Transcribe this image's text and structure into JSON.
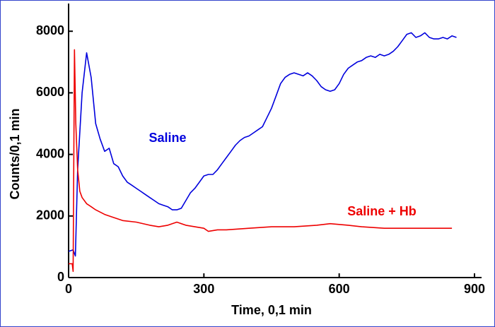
{
  "chart_data": {
    "type": "line",
    "x_label": "Time, 0,1 min",
    "y_label": "Counts/0,1 min",
    "xlim": [
      0,
      900
    ],
    "xticks": [
      0,
      300,
      600,
      900
    ],
    "ylim": [
      0,
      8900
    ],
    "yticks": [
      0,
      2000,
      4000,
      6000,
      8000
    ],
    "annotations": [
      "Saline",
      "Saline + Hb"
    ],
    "series": [
      {
        "name": "Saline",
        "color": "#0000dd",
        "x": [
          0,
          10,
          15,
          20,
          30,
          40,
          50,
          60,
          70,
          80,
          90,
          100,
          110,
          120,
          130,
          140,
          150,
          160,
          170,
          180,
          190,
          200,
          210,
          220,
          230,
          240,
          250,
          260,
          270,
          280,
          290,
          300,
          310,
          320,
          330,
          340,
          350,
          360,
          370,
          380,
          390,
          400,
          410,
          420,
          430,
          440,
          450,
          460,
          470,
          480,
          490,
          500,
          510,
          520,
          530,
          540,
          550,
          560,
          570,
          580,
          590,
          600,
          610,
          620,
          630,
          640,
          650,
          660,
          670,
          680,
          690,
          700,
          710,
          720,
          730,
          740,
          750,
          760,
          770,
          780,
          790,
          800,
          810,
          820,
          830,
          840,
          850,
          860
        ],
        "values": [
          850,
          900,
          700,
          3500,
          6000,
          7300,
          6500,
          5000,
          4500,
          4100,
          4200,
          3700,
          3600,
          3300,
          3100,
          3000,
          2900,
          2800,
          2700,
          2600,
          2500,
          2400,
          2350,
          2300,
          2200,
          2200,
          2250,
          2500,
          2750,
          2900,
          3100,
          3300,
          3350,
          3350,
          3500,
          3700,
          3900,
          4100,
          4300,
          4450,
          4550,
          4600,
          4700,
          4800,
          4900,
          5200,
          5500,
          5900,
          6300,
          6500,
          6600,
          6650,
          6600,
          6550,
          6650,
          6550,
          6400,
          6200,
          6100,
          6050,
          6100,
          6300,
          6600,
          6800,
          6900,
          7000,
          7050,
          7150,
          7200,
          7150,
          7250,
          7200,
          7250,
          7350,
          7500,
          7700,
          7900,
          7950,
          7800,
          7850,
          7950,
          7800,
          7750,
          7750,
          7800,
          7750,
          7850,
          7800
        ]
      },
      {
        "name": "Saline + Hb",
        "color": "#ee0000",
        "x": [
          0,
          8,
          10,
          13,
          16,
          20,
          25,
          30,
          40,
          50,
          60,
          80,
          100,
          120,
          150,
          180,
          200,
          220,
          240,
          260,
          280,
          300,
          310,
          330,
          350,
          400,
          450,
          500,
          550,
          580,
          620,
          650,
          700,
          750,
          800,
          850
        ],
        "values": [
          450,
          450,
          200,
          7400,
          5000,
          3500,
          2800,
          2600,
          2400,
          2300,
          2200,
          2050,
          1950,
          1850,
          1800,
          1700,
          1650,
          1700,
          1800,
          1700,
          1650,
          1600,
          1500,
          1550,
          1550,
          1600,
          1650,
          1650,
          1700,
          1750,
          1700,
          1650,
          1600,
          1600,
          1600,
          1600
        ]
      }
    ]
  }
}
